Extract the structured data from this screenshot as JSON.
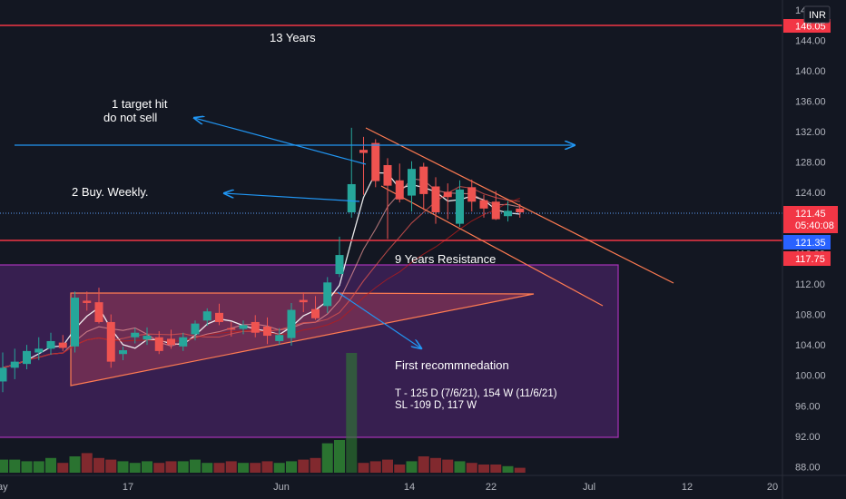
{
  "chart_data": {
    "type": "candlestick",
    "currency": "INR",
    "y_axis_ticks": [
      "88.00",
      "92.00",
      "96.00",
      "100.00",
      "104.00",
      "108.00",
      "112.00",
      "116.00",
      "120.00",
      "124.00",
      "128.00",
      "132.00",
      "136.00",
      "140.00",
      "144.00"
    ],
    "y_axis_ticks_clipped": [
      "148.00"
    ],
    "x_axis_ticks": [
      "ay",
      "17",
      "Jun",
      "14",
      "22",
      "Jul",
      "12",
      "20"
    ],
    "ylim": [
      87.5,
      149
    ],
    "price_labels": {
      "last_price": {
        "value": 121.45,
        "text": "121.45",
        "countdown": "05:40:08",
        "color": "#ef5350"
      },
      "line_121": {
        "value": 121.35,
        "text": "121.35",
        "color": "#2962ff"
      },
      "line_117": {
        "value": 117.75,
        "text": "117.75",
        "color": "#f23645"
      },
      "line_146": {
        "value": 146.05,
        "text": "146.05",
        "color": "#f23645"
      }
    },
    "horizontal_lines": [
      {
        "name": "13-year-resistance",
        "value": 146.05,
        "color": "#f23645"
      },
      {
        "name": "9-year-resistance",
        "value": 121.35,
        "color": "#f23645"
      }
    ],
    "candles": [
      {
        "i": 0,
        "o": 99.2,
        "h": 103.0,
        "l": 97.8,
        "c": 101.0
      },
      {
        "i": 1,
        "o": 101.0,
        "h": 103.5,
        "l": 99.5,
        "c": 101.8
      },
      {
        "i": 2,
        "o": 101.5,
        "h": 104.0,
        "l": 100.8,
        "c": 103.2
      },
      {
        "i": 3,
        "o": 103.0,
        "h": 105.0,
        "l": 102.0,
        "c": 103.5
      },
      {
        "i": 4,
        "o": 103.5,
        "h": 105.6,
        "l": 102.7,
        "c": 104.5
      },
      {
        "i": 5,
        "o": 104.3,
        "h": 105.3,
        "l": 103.2,
        "c": 103.6
      },
      {
        "i": 6,
        "o": 103.8,
        "h": 111.0,
        "l": 103.0,
        "c": 110.2
      },
      {
        "i": 7,
        "o": 109.8,
        "h": 111.0,
        "l": 108.5,
        "c": 109.5
      },
      {
        "i": 8,
        "o": 109.6,
        "h": 111.5,
        "l": 106.8,
        "c": 107.0
      },
      {
        "i": 9,
        "o": 107.0,
        "h": 108.0,
        "l": 101.0,
        "c": 101.8
      },
      {
        "i": 10,
        "o": 102.8,
        "h": 103.8,
        "l": 102.0,
        "c": 103.3
      },
      {
        "i": 11,
        "o": 105.0,
        "h": 106.2,
        "l": 104.2,
        "c": 105.6
      },
      {
        "i": 12,
        "o": 104.7,
        "h": 106.3,
        "l": 104.0,
        "c": 105.2
      },
      {
        "i": 13,
        "o": 105.0,
        "h": 105.8,
        "l": 102.8,
        "c": 103.2
      },
      {
        "i": 14,
        "o": 104.8,
        "h": 106.0,
        "l": 103.5,
        "c": 104.0
      },
      {
        "i": 15,
        "o": 103.8,
        "h": 105.6,
        "l": 103.2,
        "c": 105.0
      },
      {
        "i": 16,
        "o": 105.4,
        "h": 107.2,
        "l": 104.6,
        "c": 106.8
      },
      {
        "i": 17,
        "o": 107.2,
        "h": 108.8,
        "l": 106.5,
        "c": 108.4
      },
      {
        "i": 18,
        "o": 108.2,
        "h": 109.4,
        "l": 106.6,
        "c": 107.0
      },
      {
        "i": 19,
        "o": 106.2,
        "h": 107.0,
        "l": 105.1,
        "c": 106.0
      },
      {
        "i": 20,
        "o": 106.1,
        "h": 107.2,
        "l": 105.4,
        "c": 106.6
      },
      {
        "i": 21,
        "o": 107.0,
        "h": 107.9,
        "l": 105.0,
        "c": 105.6
      },
      {
        "i": 22,
        "o": 106.4,
        "h": 107.6,
        "l": 104.1,
        "c": 105.2
      },
      {
        "i": 23,
        "o": 104.5,
        "h": 106.2,
        "l": 104.0,
        "c": 105.3
      },
      {
        "i": 24,
        "o": 104.9,
        "h": 109.5,
        "l": 103.9,
        "c": 108.6
      },
      {
        "i": 25,
        "o": 109.9,
        "h": 110.9,
        "l": 108.3,
        "c": 109.6
      },
      {
        "i": 26,
        "o": 108.7,
        "h": 110.4,
        "l": 107.3,
        "c": 107.5
      },
      {
        "i": 27,
        "o": 109.1,
        "h": 112.9,
        "l": 108.2,
        "c": 112.2
      },
      {
        "i": 28,
        "o": 113.3,
        "h": 118.2,
        "l": 112.9,
        "c": 115.8
      },
      {
        "i": 29,
        "o": 121.4,
        "h": 132.5,
        "l": 120.7,
        "c": 125.1
      },
      {
        "i": 30,
        "o": 129.6,
        "h": 131.3,
        "l": 123.7,
        "c": 129.2
      },
      {
        "i": 31,
        "o": 130.5,
        "h": 131.0,
        "l": 124.7,
        "c": 125.5
      },
      {
        "i": 32,
        "o": 127.6,
        "h": 128.5,
        "l": 117.9,
        "c": 124.9
      },
      {
        "i": 33,
        "o": 125.6,
        "h": 127.8,
        "l": 122.7,
        "c": 123.1
      },
      {
        "i": 34,
        "o": 123.6,
        "h": 128.1,
        "l": 121.5,
        "c": 127.1
      },
      {
        "i": 35,
        "o": 127.4,
        "h": 127.9,
        "l": 121.7,
        "c": 123.8
      },
      {
        "i": 36,
        "o": 124.8,
        "h": 126.0,
        "l": 119.9,
        "c": 121.4
      },
      {
        "i": 37,
        "o": 124.1,
        "h": 125.2,
        "l": 120.5,
        "c": 123.4
      },
      {
        "i": 38,
        "o": 119.9,
        "h": 125.6,
        "l": 119.5,
        "c": 124.4
      },
      {
        "i": 39,
        "o": 124.7,
        "h": 125.7,
        "l": 121.5,
        "c": 122.8
      },
      {
        "i": 40,
        "o": 123.0,
        "h": 123.7,
        "l": 120.7,
        "c": 121.9
      },
      {
        "i": 41,
        "o": 122.8,
        "h": 124.2,
        "l": 120.4,
        "c": 120.5
      },
      {
        "i": 42,
        "o": 120.9,
        "h": 122.9,
        "l": 120.2,
        "c": 121.6
      },
      {
        "i": 43,
        "o": 121.9,
        "h": 122.5,
        "l": 120.7,
        "c": 121.4
      }
    ],
    "volume": [
      8,
      8,
      7,
      7,
      9,
      6,
      10,
      12,
      9,
      8,
      7,
      6,
      7,
      6,
      7,
      7,
      8,
      6,
      6,
      7,
      6,
      6,
      7,
      6,
      7,
      8,
      9,
      9,
      10,
      10,
      6,
      7,
      8,
      5,
      7,
      10,
      9,
      8,
      7,
      6,
      5,
      5,
      4,
      3
    ],
    "annotations": {
      "years13": "13 Years",
      "target_line1": "1 target hit",
      "target_line2": "do not sell",
      "buy_weekly": "2 Buy. Weekly.",
      "years9": "9 Years Resistance",
      "first_reco": "First recommnedation",
      "targets": "T - 125 D (7/6/21), 154 W (11/6/21)",
      "stoploss": "SL -109 D, 117 W"
    },
    "grid": false,
    "colors": {
      "up": "#26a69a",
      "down": "#ef5350",
      "background": "#131722",
      "purple_zone": "#9c27b0",
      "triangle": "#f7525f",
      "channel": "#ff7b52",
      "arrow": "#2196f3"
    }
  }
}
